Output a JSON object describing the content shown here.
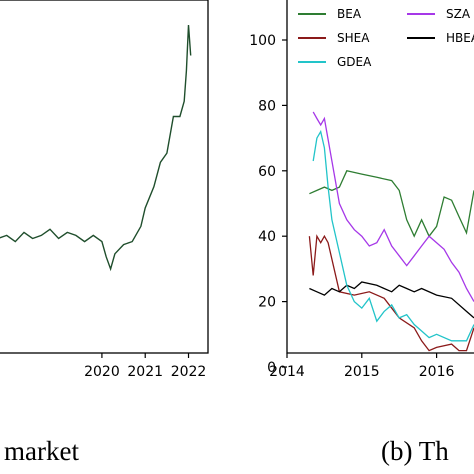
{
  "chart_data": [
    {
      "type": "line",
      "panel": "left",
      "caption": "market",
      "x_ticks": [
        "2020",
        "2021",
        "2022"
      ],
      "x_tick_values": [
        2020,
        2021,
        2022
      ],
      "xlim": [
        2017.6,
        2022.45
      ],
      "ylim": [
        0,
        100
      ],
      "grid": false,
      "series": [
        {
          "color": "#1f4e2c",
          "x": [
            2017.6,
            2017.8,
            2018.0,
            2018.2,
            2018.4,
            2018.6,
            2018.8,
            2019.0,
            2019.2,
            2019.4,
            2019.6,
            2019.8,
            2020.0,
            2020.1,
            2020.2,
            2020.3,
            2020.5,
            2020.7,
            2020.9,
            2021.0,
            2021.2,
            2021.35,
            2021.5,
            2021.65,
            2021.8,
            2021.9,
            2021.95,
            2022.0,
            2022.05
          ],
          "y": [
            30,
            31,
            29,
            32,
            30,
            31,
            33,
            30,
            32,
            31,
            29,
            31,
            29,
            24,
            20,
            25,
            28,
            29,
            34,
            40,
            47,
            55,
            58,
            70,
            70,
            75,
            85,
            100,
            90
          ]
        }
      ]
    },
    {
      "type": "line",
      "panel": "right",
      "caption": "(b) Th",
      "x_ticks": [
        "2014",
        "2015",
        "2016"
      ],
      "x_tick_values": [
        2014,
        2015,
        2016
      ],
      "y_ticks": [
        "0",
        "20",
        "40",
        "60",
        "80",
        "100"
      ],
      "y_tick_values": [
        0,
        20,
        40,
        60,
        80,
        100
      ],
      "xlim": [
        2014,
        2016.5
      ],
      "ylim": [
        -3,
        112
      ],
      "grid": false,
      "legend": {
        "placement": "top",
        "columns": 2
      },
      "series": [
        {
          "name": "BEA",
          "color": "#2e7d32",
          "x": [
            2014.3,
            2014.4,
            2014.5,
            2014.6,
            2014.7,
            2014.8,
            2015.0,
            2015.2,
            2015.4,
            2015.5,
            2015.6,
            2015.7,
            2015.8,
            2015.9,
            2016.0,
            2016.1,
            2016.2,
            2016.3,
            2016.4,
            2016.5
          ],
          "y": [
            53,
            54,
            55,
            54,
            55,
            60,
            59,
            58,
            57,
            54,
            45,
            40,
            45,
            40,
            43,
            52,
            51,
            46,
            41,
            54
          ]
        },
        {
          "name": "SZA",
          "color": "#a638e8",
          "x": [
            2014.35,
            2014.4,
            2014.45,
            2014.5,
            2014.6,
            2014.7,
            2014.8,
            2014.9,
            2015.0,
            2015.1,
            2015.2,
            2015.3,
            2015.4,
            2015.5,
            2015.6,
            2015.7,
            2015.8,
            2015.9,
            2016.0,
            2016.1,
            2016.2,
            2016.3,
            2016.4,
            2016.5
          ],
          "y": [
            78,
            76,
            74,
            76,
            63,
            50,
            45,
            42,
            40,
            37,
            38,
            42,
            37,
            34,
            31,
            34,
            37,
            40,
            38,
            36,
            32,
            29,
            24,
            20
          ]
        },
        {
          "name": "SHEA",
          "color": "#8b1a1a",
          "x": [
            2014.3,
            2014.35,
            2014.4,
            2014.45,
            2014.5,
            2014.55,
            2014.7,
            2014.9,
            2015.1,
            2015.3,
            2015.5,
            2015.7,
            2015.8,
            2015.9,
            2016.0,
            2016.2,
            2016.3,
            2016.4,
            2016.5
          ],
          "y": [
            40,
            28,
            40,
            38,
            40,
            38,
            23,
            22,
            23,
            21,
            15,
            12,
            8,
            5,
            6,
            7,
            5,
            5,
            12
          ]
        },
        {
          "name": "HBEA",
          "color": "#000000",
          "x": [
            2014.3,
            2014.4,
            2014.5,
            2014.6,
            2014.7,
            2014.8,
            2014.9,
            2015.0,
            2015.2,
            2015.4,
            2015.5,
            2015.6,
            2015.7,
            2015.8,
            2016.0,
            2016.2,
            2016.4,
            2016.5
          ],
          "y": [
            24,
            23,
            22,
            24,
            23,
            25,
            24,
            26,
            25,
            23,
            25,
            24,
            23,
            24,
            22,
            21,
            17,
            15
          ]
        },
        {
          "name": "GDEA",
          "color": "#22c4c9",
          "x": [
            2014.35,
            2014.4,
            2014.45,
            2014.5,
            2014.55,
            2014.6,
            2014.7,
            2014.8,
            2014.9,
            2015.0,
            2015.1,
            2015.2,
            2015.3,
            2015.4,
            2015.5,
            2015.6,
            2015.7,
            2015.8,
            2015.9,
            2016.0,
            2016.2,
            2016.4,
            2016.5
          ],
          "y": [
            63,
            70,
            72,
            67,
            55,
            45,
            35,
            25,
            20,
            18,
            21,
            14,
            17,
            19,
            15,
            16,
            13,
            11,
            9,
            10,
            8,
            8,
            13
          ]
        }
      ]
    }
  ]
}
